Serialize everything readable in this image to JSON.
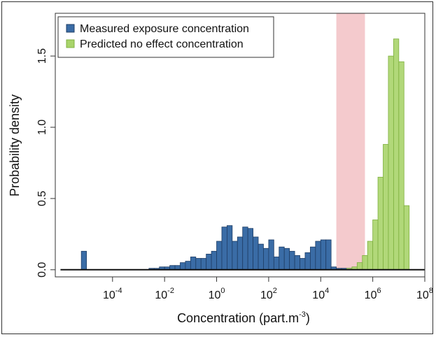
{
  "chart_data": {
    "type": "histogram",
    "title": "",
    "xlabel": "Concentration (part.m",
    "xlabel_sup": "-3",
    "xlabel_close": ")",
    "ylabel": "Probability density",
    "xscale": "log10",
    "xlim_log10": [
      -6.2,
      8
    ],
    "ylim": [
      -0.05,
      1.8
    ],
    "yticks": [
      "0.0",
      "0.5",
      "1.0",
      "1.5"
    ],
    "ytick_values": [
      0,
      0.5,
      1.0,
      1.5
    ],
    "xticks_exponents": [
      "-4",
      "-2",
      "0",
      "2",
      "4",
      "6",
      "8"
    ],
    "xtick_base": "10",
    "bin_width_log10": 0.2,
    "baseline_log10": [
      -6,
      8
    ],
    "highlight_band_log10": [
      4.6,
      5.7
    ],
    "colors": {
      "measured": "#3a6ca6",
      "measured_edge": "#1f3e66",
      "predicted": "#a8d46a",
      "predicted_edge": "#7fb040",
      "band": "#f0b8bc"
    },
    "legend": {
      "position": "top-left",
      "entries": [
        "Measured exposure concentration",
        "Predicted no effect concentration"
      ]
    },
    "series": [
      {
        "name": "Measured exposure concentration",
        "bins": [
          {
            "x": -5.2,
            "y": 0.13
          },
          {
            "x": -2.6,
            "y": 0.01
          },
          {
            "x": -2.4,
            "y": 0.01
          },
          {
            "x": -2.2,
            "y": 0.02
          },
          {
            "x": -2.0,
            "y": 0.02
          },
          {
            "x": -1.8,
            "y": 0.03
          },
          {
            "x": -1.6,
            "y": 0.03
          },
          {
            "x": -1.4,
            "y": 0.05
          },
          {
            "x": -1.2,
            "y": 0.06
          },
          {
            "x": -1.0,
            "y": 0.09
          },
          {
            "x": -0.8,
            "y": 0.08
          },
          {
            "x": -0.6,
            "y": 0.08
          },
          {
            "x": -0.4,
            "y": 0.11
          },
          {
            "x": -0.2,
            "y": 0.13
          },
          {
            "x": 0.0,
            "y": 0.2
          },
          {
            "x": 0.2,
            "y": 0.3
          },
          {
            "x": 0.4,
            "y": 0.31
          },
          {
            "x": 0.6,
            "y": 0.2
          },
          {
            "x": 0.8,
            "y": 0.23
          },
          {
            "x": 1.0,
            "y": 0.3
          },
          {
            "x": 1.2,
            "y": 0.29
          },
          {
            "x": 1.4,
            "y": 0.23
          },
          {
            "x": 1.6,
            "y": 0.18
          },
          {
            "x": 1.8,
            "y": 0.15
          },
          {
            "x": 2.0,
            "y": 0.21
          },
          {
            "x": 2.2,
            "y": 0.09
          },
          {
            "x": 2.4,
            "y": 0.16
          },
          {
            "x": 2.6,
            "y": 0.15
          },
          {
            "x": 2.8,
            "y": 0.13
          },
          {
            "x": 3.0,
            "y": 0.1
          },
          {
            "x": 3.2,
            "y": 0.08
          },
          {
            "x": 3.4,
            "y": 0.12
          },
          {
            "x": 3.6,
            "y": 0.16
          },
          {
            "x": 3.8,
            "y": 0.2
          },
          {
            "x": 4.0,
            "y": 0.21
          },
          {
            "x": 4.2,
            "y": 0.21
          },
          {
            "x": 4.4,
            "y": 0.02
          },
          {
            "x": 4.6,
            "y": 0.01
          },
          {
            "x": 4.8,
            "y": 0.01
          },
          {
            "x": 5.0,
            "y": 0.01
          }
        ]
      },
      {
        "name": "Predicted no effect concentration",
        "bins": [
          {
            "x": 5.0,
            "y": 0.01
          },
          {
            "x": 5.2,
            "y": 0.02
          },
          {
            "x": 5.4,
            "y": 0.05
          },
          {
            "x": 5.6,
            "y": 0.1
          },
          {
            "x": 5.8,
            "y": 0.2
          },
          {
            "x": 6.0,
            "y": 0.35
          },
          {
            "x": 6.2,
            "y": 0.65
          },
          {
            "x": 6.4,
            "y": 0.88
          },
          {
            "x": 6.6,
            "y": 1.5
          },
          {
            "x": 6.8,
            "y": 1.62
          },
          {
            "x": 7.0,
            "y": 1.46
          },
          {
            "x": 7.2,
            "y": 0.45
          }
        ]
      }
    ]
  }
}
